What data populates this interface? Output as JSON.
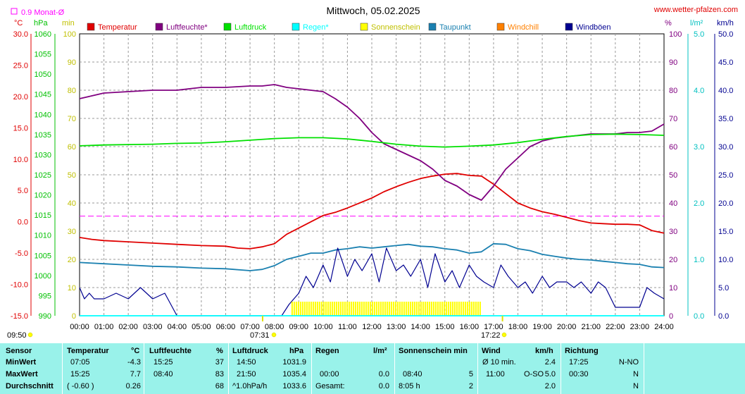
{
  "header": {
    "title": "Mittwoch, 05.02.2025",
    "site": "www.wetter-pfalzen.com",
    "avg_label": "0.9 Monat-Ø"
  },
  "units": {
    "temp": "°C",
    "press": "hPa",
    "min": "min",
    "pct": "%",
    "rain": "l/m²",
    "wind": "km/h"
  },
  "legend": [
    {
      "label": "Temperatur",
      "color": "#e00000"
    },
    {
      "label": "Luftfeuchte*",
      "color": "#800080"
    },
    {
      "label": "Luftdruck",
      "color": "#00e000"
    },
    {
      "label": "Regen*",
      "color": "#00ffff"
    },
    {
      "label": "Sonnenschein",
      "color": "#ffff00"
    },
    {
      "label": "Taupunkt",
      "color": "#1a80b0"
    },
    {
      "label": "Windchill",
      "color": "#ff8000"
    },
    {
      "label": "Windböen",
      "color": "#000090"
    }
  ],
  "axes": {
    "temp_ticks": [
      "30.0",
      "25.0",
      "20.0",
      "15.0",
      "10.0",
      "5.0",
      "0.0",
      "-5.0",
      "-10.0",
      "-15.0"
    ],
    "press_ticks": [
      "1060",
      "1055",
      "1050",
      "1045",
      "1040",
      "1035",
      "1030",
      "1025",
      "1020",
      "1015",
      "1010",
      "1005",
      "1000",
      "995",
      "990"
    ],
    "min_ticks": [
      "100",
      "90",
      "80",
      "70",
      "60",
      "50",
      "40",
      "30",
      "20",
      "10",
      "0"
    ],
    "pct_ticks": [
      "100",
      "90",
      "80",
      "70",
      "60",
      "50",
      "40",
      "30",
      "20",
      "10",
      "0"
    ],
    "rain_ticks": [
      "5.0",
      "4.0",
      "3.0",
      "2.0",
      "1.0",
      "0.0"
    ],
    "wind_ticks": [
      "50.0",
      "45.0",
      "40.0",
      "35.0",
      "30.0",
      "25.0",
      "20.0",
      "15.0",
      "10.0",
      "5.0",
      "0.0"
    ],
    "x_ticks": [
      "00:00",
      "01:00",
      "02:00",
      "03:00",
      "04:00",
      "05:00",
      "06:00",
      "07:00",
      "08:00",
      "09:00",
      "10:00",
      "11:00",
      "12:00",
      "13:00",
      "14:00",
      "15:00",
      "16:00",
      "17:00",
      "18:00",
      "19:00",
      "20:00",
      "21:00",
      "22:00",
      "23:00",
      "24:00"
    ],
    "sunrise": "07:31",
    "sunset": "17:22",
    "sun_duration": "09:50"
  },
  "chart_data": {
    "type": "line",
    "x_unit": "hour",
    "xlim": [
      0,
      24
    ],
    "temp_ylim": [
      -15,
      30
    ],
    "monthly_avg_temp": 0.9,
    "series": [
      {
        "name": "Temperatur",
        "axis": "°C",
        "color": "#e00000",
        "x": [
          0,
          0.5,
          1,
          2,
          3,
          4,
          5,
          6,
          6.5,
          7,
          7.5,
          8,
          8.5,
          9,
          9.5,
          10,
          10.5,
          11,
          11.5,
          12,
          12.5,
          13,
          13.5,
          14,
          14.5,
          15,
          15.5,
          16,
          16.5,
          17,
          17.5,
          18,
          18.5,
          19,
          19.5,
          20,
          20.5,
          21,
          21.5,
          22,
          22.5,
          23,
          23.5,
          24
        ],
        "y": [
          -2.5,
          -2.8,
          -3.0,
          -3.2,
          -3.4,
          -3.6,
          -3.8,
          -3.9,
          -4.2,
          -4.3,
          -4.0,
          -3.5,
          -2.0,
          -1.0,
          0.0,
          1.0,
          1.5,
          2.2,
          3.0,
          3.8,
          4.8,
          5.6,
          6.3,
          6.9,
          7.3,
          7.6,
          7.7,
          7.4,
          7.3,
          6.0,
          4.5,
          3.0,
          2.2,
          1.6,
          1.2,
          0.7,
          0.2,
          -0.2,
          -0.3,
          -0.4,
          -0.4,
          -0.5,
          -1.4,
          -1.8
        ]
      },
      {
        "name": "Luftfeuchte*",
        "axis": "%",
        "color": "#800080",
        "x": [
          0,
          0.5,
          1,
          2,
          3,
          4,
          5,
          6,
          7,
          7.5,
          8,
          8.5,
          9,
          9.5,
          10,
          10.5,
          11,
          11.5,
          12,
          12.5,
          13,
          13.5,
          14,
          14.5,
          15,
          15.5,
          16,
          16.5,
          17,
          17.5,
          18,
          18.5,
          19,
          19.5,
          20,
          20.5,
          21,
          21.5,
          22,
          22.5,
          23,
          23.5,
          24
        ],
        "y": [
          77,
          78,
          79,
          79.5,
          80,
          80,
          81,
          81,
          81.5,
          81.5,
          82,
          81,
          80.5,
          80,
          79.5,
          77,
          74,
          70,
          65,
          61,
          59,
          57,
          55,
          52,
          48,
          46,
          43,
          41,
          46,
          52,
          56,
          60,
          62,
          63,
          63.5,
          64,
          64.5,
          64.5,
          64.5,
          65,
          65,
          65.5,
          68
        ]
      },
      {
        "name": "Luftdruck",
        "axis": "hPa",
        "color": "#00e000",
        "x": [
          0,
          1,
          2,
          3,
          4,
          5,
          6,
          7,
          8,
          9,
          10,
          11,
          12,
          13,
          14,
          15,
          16,
          17,
          18,
          19,
          20,
          21,
          22,
          23,
          24
        ],
        "y": [
          1032.2,
          1032.4,
          1032.5,
          1032.6,
          1032.8,
          1032.9,
          1033.2,
          1033.6,
          1034.0,
          1034.2,
          1034.2,
          1033.9,
          1033.3,
          1032.6,
          1032.1,
          1031.9,
          1032.1,
          1032.4,
          1033.0,
          1033.8,
          1034.5,
          1035.0,
          1035.1,
          1035.0,
          1034.8
        ]
      },
      {
        "name": "Taupunkt",
        "axis": "°C",
        "color": "#1a80b0",
        "x": [
          0,
          1,
          2,
          3,
          4,
          5,
          6,
          7,
          7.5,
          8,
          8.5,
          9,
          9.5,
          10,
          10.5,
          11,
          11.5,
          12,
          12.5,
          13,
          13.5,
          14,
          14.5,
          15,
          15.5,
          16,
          16.5,
          17,
          17.5,
          18,
          18.5,
          19,
          19.5,
          20,
          20.5,
          21,
          21.5,
          22,
          22.5,
          23,
          23.5,
          24
        ],
        "y": [
          -6.5,
          -6.7,
          -6.9,
          -7.1,
          -7.2,
          -7.4,
          -7.5,
          -7.8,
          -7.6,
          -7.0,
          -6.0,
          -5.5,
          -5.0,
          -5.0,
          -4.5,
          -4.3,
          -4.0,
          -4.2,
          -4.0,
          -3.8,
          -3.6,
          -3.9,
          -4.0,
          -4.3,
          -4.5,
          -5.0,
          -4.8,
          -3.5,
          -3.6,
          -4.3,
          -4.6,
          -5.2,
          -5.5,
          -5.8,
          -6.0,
          -6.1,
          -6.3,
          -6.5,
          -6.7,
          -6.8,
          -7.2,
          -7.3
        ]
      },
      {
        "name": "Windböen",
        "axis": "km/h",
        "color": "#000090",
        "x": [
          0,
          0.2,
          0.4,
          0.6,
          1,
          1.5,
          2,
          2.5,
          3,
          3.5,
          4,
          4.5,
          5,
          6,
          7,
          8,
          8.3,
          8.6,
          9,
          9.3,
          9.6,
          10,
          10.3,
          10.6,
          11,
          11.3,
          11.6,
          12,
          12.3,
          12.6,
          13,
          13.3,
          13.6,
          14,
          14.3,
          14.6,
          15,
          15.3,
          15.6,
          16,
          16.3,
          16.6,
          17,
          17.3,
          17.6,
          18,
          18.3,
          18.6,
          19,
          19.3,
          19.6,
          20,
          20.3,
          20.6,
          21,
          21.3,
          21.6,
          22,
          22.5,
          23,
          23.3,
          23.6,
          24
        ],
        "y": [
          5,
          3,
          4,
          3,
          3,
          4,
          3,
          5,
          3,
          4,
          0,
          0,
          0,
          0,
          0,
          0,
          0,
          2,
          4,
          7,
          5,
          9,
          6,
          12,
          7,
          10,
          8,
          11,
          6,
          12,
          8,
          9,
          7,
          10,
          5,
          11,
          6,
          8,
          5,
          9,
          7,
          6,
          5,
          9,
          7,
          5,
          6,
          4,
          7,
          5,
          6,
          6,
          5,
          6,
          4,
          6,
          5,
          1.5,
          1.5,
          1.5,
          5,
          4,
          3
        ]
      },
      {
        "name": "Sonnenschein",
        "axis": "min",
        "color": "#ffff00",
        "x": [
          8.7,
          16.5
        ],
        "y": [
          5,
          5
        ]
      },
      {
        "name": "Regen*",
        "axis": "l/m²",
        "color": "#00ffff",
        "x": [
          0,
          24
        ],
        "y": [
          0,
          0
        ]
      }
    ]
  },
  "stats": {
    "headers": {
      "sensor": "Sensor",
      "temp": "Temperatur",
      "temp_unit": "°C",
      "hum": "Luftfeuchte",
      "hum_unit": "%",
      "press": "Luftdruck",
      "press_unit": "hPa",
      "rain": "Regen",
      "rain_unit": "l/m²",
      "sun": "Sonnenschein min",
      "wind": "Wind",
      "wind_unit": "km/h",
      "dir": "Richtung"
    },
    "rows": [
      {
        "label": "MinWert",
        "temp_time": "07:05",
        "temp_val": "-4.3",
        "hum_time": "15:25",
        "hum_val": "37",
        "press_time": "14:50",
        "press_val": "1031.9",
        "rain_time": "",
        "rain_val": "",
        "sun_time": "",
        "sun_val": "",
        "wind_time": "Ø 10 min.",
        "wind_dir": "",
        "wind_val": "2.4",
        "dir_time": "17:25",
        "dir_val": "N-NO"
      },
      {
        "label": "MaxWert",
        "temp_time": "15:25",
        "temp_val": "7.7",
        "hum_time": "08:40",
        "hum_val": "83",
        "press_time": "21:50",
        "press_val": "1035.4",
        "rain_time": "00:00",
        "rain_val": "0.0",
        "sun_time": "08:40",
        "sun_val": "5",
        "wind_time": "11:00",
        "wind_dir": "O-SO",
        "wind_val": "5.0",
        "dir_time": "00:30",
        "dir_val": "N"
      },
      {
        "label": "Durchschnitt",
        "temp_time": "( -0.60 )",
        "temp_val": "0.26",
        "hum_time": "",
        "hum_val": "68",
        "press_time": "^1.0hPa/h",
        "press_val": "1033.6",
        "rain_time": "Gesamt:",
        "rain_val": "0.0",
        "sun_time": "8:05 h",
        "sun_val": "2",
        "wind_time": "",
        "wind_dir": "",
        "wind_val": "2.0",
        "dir_time": "",
        "dir_val": "N"
      }
    ]
  }
}
